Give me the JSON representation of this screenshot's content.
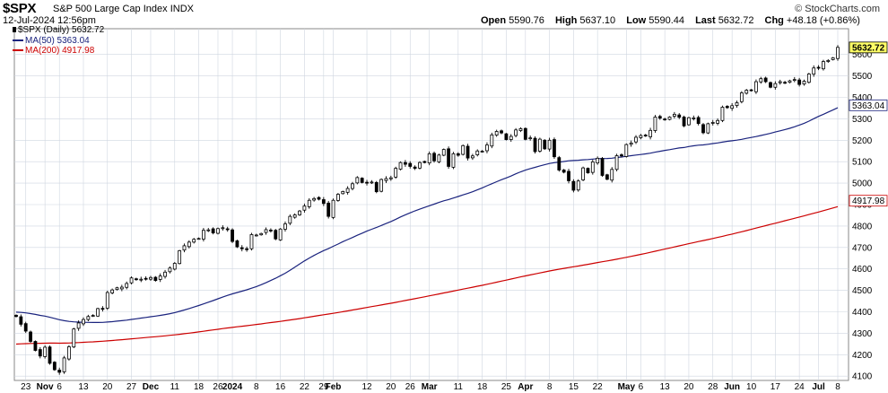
{
  "header": {
    "symbol": "$SPX",
    "name": "S&P 500 Large Cap Index",
    "exchange": "INDX",
    "datetime": "12-Jul-2024 12:56pm",
    "source": "© StockCharts.com",
    "open_label": "Open",
    "open": "5590.76",
    "high_label": "High",
    "high": "5637.10",
    "low_label": "Low",
    "low": "5590.44",
    "last_label": "Last",
    "last": "5632.72",
    "chg_label": "Chg",
    "chg": "+48.18 (+0.86%)"
  },
  "legend": {
    "price": "$SPX (Daily) 5632.72",
    "ma50": "MA(50) 5363.04",
    "ma200": "MA(200) 4917.98"
  },
  "price_tags": {
    "last": "5632.72",
    "ma50": "5363.04",
    "ma200": "4917.98"
  },
  "colors": {
    "candle": "#000000",
    "ma50": "#1a237e",
    "ma200": "#cc0000",
    "last_tag": "#ffff66",
    "grid": "#cfd6e0"
  },
  "chart_data": {
    "type": "candlestick",
    "ylim": [
      4080,
      5720
    ],
    "y_ticks": [
      4100,
      4200,
      4300,
      4400,
      4500,
      4600,
      4700,
      4800,
      4900,
      5000,
      5100,
      5200,
      5300,
      5400,
      5500,
      5600
    ],
    "x_labels": [
      {
        "i": 2,
        "text": "23",
        "bold": false
      },
      {
        "i": 6,
        "text": "Nov",
        "bold": true
      },
      {
        "i": 9,
        "text": "6",
        "bold": false
      },
      {
        "i": 14,
        "text": "13",
        "bold": false
      },
      {
        "i": 19,
        "text": "20",
        "bold": false
      },
      {
        "i": 24,
        "text": "27",
        "bold": false
      },
      {
        "i": 28,
        "text": "Dec",
        "bold": true
      },
      {
        "i": 33,
        "text": "11",
        "bold": false
      },
      {
        "i": 38,
        "text": "18",
        "bold": false
      },
      {
        "i": 42,
        "text": "26",
        "bold": false
      },
      {
        "i": 45,
        "text": "2024",
        "bold": true
      },
      {
        "i": 50,
        "text": "8",
        "bold": false
      },
      {
        "i": 55,
        "text": "16",
        "bold": false
      },
      {
        "i": 60,
        "text": "22",
        "bold": false
      },
      {
        "i": 64,
        "text": "29",
        "bold": false
      },
      {
        "i": 66,
        "text": "Feb",
        "bold": true
      },
      {
        "i": 73,
        "text": "12",
        "bold": false
      },
      {
        "i": 78,
        "text": "20",
        "bold": false
      },
      {
        "i": 82,
        "text": "26",
        "bold": false
      },
      {
        "i": 86,
        "text": "Mar",
        "bold": true
      },
      {
        "i": 92,
        "text": "11",
        "bold": false
      },
      {
        "i": 97,
        "text": "18",
        "bold": false
      },
      {
        "i": 102,
        "text": "25",
        "bold": false
      },
      {
        "i": 106,
        "text": "Apr",
        "bold": true
      },
      {
        "i": 111,
        "text": "8",
        "bold": false
      },
      {
        "i": 116,
        "text": "15",
        "bold": false
      },
      {
        "i": 121,
        "text": "22",
        "bold": false
      },
      {
        "i": 127,
        "text": "May",
        "bold": true
      },
      {
        "i": 130,
        "text": "6",
        "bold": false
      },
      {
        "i": 135,
        "text": "13",
        "bold": false
      },
      {
        "i": 140,
        "text": "20",
        "bold": false
      },
      {
        "i": 145,
        "text": "28",
        "bold": false
      },
      {
        "i": 149,
        "text": "Jun",
        "bold": true
      },
      {
        "i": 153,
        "text": "10",
        "bold": false
      },
      {
        "i": 158,
        "text": "17",
        "bold": false
      },
      {
        "i": 163,
        "text": "24",
        "bold": false
      },
      {
        "i": 167,
        "text": "Jul",
        "bold": true
      },
      {
        "i": 171,
        "text": "8",
        "bold": false
      }
    ],
    "close": [
      4378,
      4342,
      4310,
      4262,
      4220,
      4194,
      4235,
      4160,
      4130,
      4118,
      4185,
      4237,
      4320,
      4348,
      4364,
      4378,
      4383,
      4415,
      4412,
      4490,
      4502,
      4512,
      4515,
      4532,
      4558,
      4550,
      4552,
      4555,
      4560,
      4546,
      4567,
      4585,
      4604,
      4626,
      4685,
      4708,
      4725,
      4738,
      4742,
      4780,
      4782,
      4768,
      4788,
      4792,
      4783,
      4728,
      4703,
      4694,
      4690,
      4760,
      4758,
      4765,
      4783,
      4778,
      4740,
      4786,
      4810,
      4845,
      4852,
      4870,
      4893,
      4920,
      4928,
      4925,
      4905,
      4845,
      4920,
      4948,
      4961,
      4975,
      4997,
      5026,
      5003,
      5000,
      5005,
      4960,
      5017,
      5021,
      5025,
      5069,
      5096,
      5088,
      5078,
      5069,
      5096,
      5096,
      5137,
      5104,
      5131,
      5157,
      5078,
      5137,
      5130,
      5175,
      5117,
      5127,
      5150,
      5149,
      5178,
      5225,
      5241,
      5234,
      5203,
      5218,
      5248,
      5254,
      5204,
      5211,
      5147,
      5205,
      5160,
      5200,
      5123,
      5061,
      5051,
      5011,
      4967,
      5010,
      5071,
      5048,
      5099,
      5116,
      5036,
      5018,
      5064,
      5128,
      5127,
      5180,
      5187,
      5214,
      5222,
      5221,
      5246,
      5308,
      5303,
      5297,
      5308,
      5321,
      5307,
      5267,
      5305,
      5304,
      5278,
      5235,
      5277,
      5283,
      5292,
      5354,
      5352,
      5361,
      5375,
      5421,
      5433,
      5431,
      5473,
      5487,
      5473,
      5447,
      5464,
      5473,
      5469,
      5477,
      5483,
      5460,
      5475,
      5509,
      5537,
      5537,
      5567,
      5572,
      5584,
      5633
    ]
  }
}
